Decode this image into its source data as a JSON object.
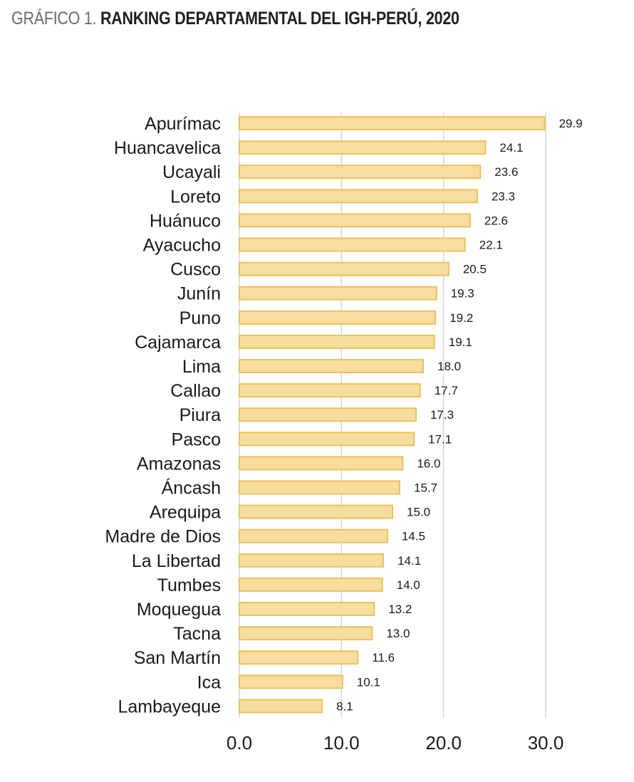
{
  "header": {
    "prefix": "GRÁFICO 1.",
    "title": "RANKING DEPARTAMENTAL DEL IGH-PERÚ, 2020"
  },
  "colors": {
    "bar_fill": "#f7dd9e",
    "bar_stroke": "#ecc15c",
    "grid": "#d6d6d6"
  },
  "chart_data": {
    "type": "bar",
    "orientation": "horizontal",
    "title": "RANKING DEPARTAMENTAL DEL IGH-PERÚ, 2020",
    "xlabel": "",
    "ylabel": "",
    "xlim": [
      0,
      30
    ],
    "x_ticks": [
      0,
      10,
      20,
      30
    ],
    "x_tick_labels": [
      "0.0",
      "10.0",
      "20.0",
      "30.0"
    ],
    "grid": "vertical",
    "legend": "none",
    "categories": [
      "Apurímac",
      "Huancavelica",
      "Ucayali",
      "Loreto",
      "Huánuco",
      "Ayacucho",
      "Cusco",
      "Junín",
      "Puno",
      "Cajamarca",
      "Lima",
      "Callao",
      "Piura",
      "Pasco",
      "Amazonas",
      "Áncash",
      "Arequipa",
      "Madre de Dios",
      "La Libertad",
      "Tumbes",
      "Moquegua",
      "Tacna",
      "San Martín",
      "Ica",
      "Lambayeque"
    ],
    "values": [
      29.9,
      24.1,
      23.6,
      23.3,
      22.6,
      22.1,
      20.5,
      19.3,
      19.2,
      19.1,
      18.0,
      17.7,
      17.3,
      17.1,
      16.0,
      15.7,
      15.0,
      14.5,
      14.1,
      14.0,
      13.2,
      13.0,
      11.6,
      10.1,
      8.1
    ],
    "value_labels": [
      "29.9",
      "24.1",
      "23.6",
      "23.3",
      "22.6",
      "22.1",
      "20.5",
      "19.3",
      "19.2",
      "19.1",
      "18.0",
      "17.7",
      "17.3",
      "17.1",
      "16.0",
      "15.7",
      "15.0",
      "14.5",
      "14.1",
      "14.0",
      "13.2",
      "13.0",
      "11.6",
      "10.1",
      "8.1"
    ]
  }
}
